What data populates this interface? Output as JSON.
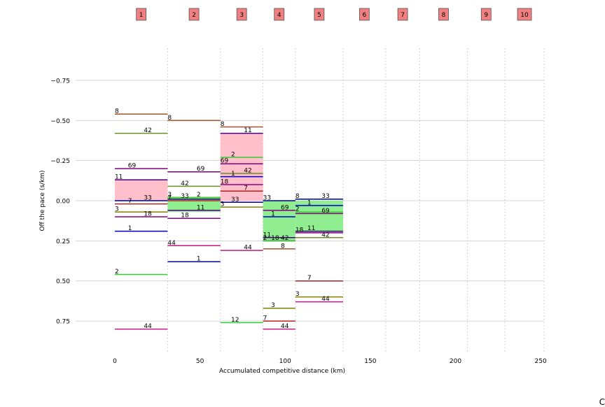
{
  "chart_data": {
    "type": "line",
    "xlabel": "Accumulated competitive distance (km)",
    "ylabel": "Off the pace (s/km)",
    "xlim": [
      -23,
      252
    ],
    "ylim": [
      0.95,
      -0.95
    ],
    "y_inverted": true,
    "grid": "horizontal solid, vertical dotted at stage ends",
    "x_ticks": [
      0,
      50,
      100,
      150,
      200,
      250
    ],
    "y_ticks": [
      -0.75,
      -0.5,
      -0.25,
      0.0,
      0.25,
      0.5,
      0.75
    ],
    "x_tick_labels": [
      "0",
      "50",
      "100",
      "150",
      "200",
      "250"
    ],
    "y_tick_labels": [
      "−0.75",
      "−0.50",
      "−0.25",
      "0.00",
      "0.25",
      "0.50",
      "0.75"
    ],
    "stage_boundaries": [
      0,
      31,
      62,
      87,
      106,
      134,
      159,
      179,
      207,
      229,
      252
    ],
    "stage_labels": [
      "1",
      "2",
      "3",
      "4",
      "5",
      "6",
      "7",
      "8",
      "9",
      "10"
    ],
    "bands": [
      {
        "stage": 1,
        "from": -0.13,
        "to": 0.0,
        "color": "#ffc0cb"
      },
      {
        "stage": 2,
        "from": -0.02,
        "to": 0.07,
        "color": "#90ee90"
      },
      {
        "stage": 3,
        "from": -0.42,
        "to": 0.0,
        "color": "#ffc0cb"
      },
      {
        "stage": 4,
        "from": 0.0,
        "to": 0.25,
        "color": "#90ee90"
      },
      {
        "stage": 5,
        "from": 0.0,
        "to": 0.2,
        "color": "#90ee90"
      }
    ],
    "series": [
      {
        "name": "8",
        "color": "#a0522d",
        "values": [
          -0.54,
          -0.5,
          -0.46,
          0.3,
          -0.01
        ]
      },
      {
        "name": "42",
        "color": "#6b8e23",
        "values": [
          -0.42,
          -0.09,
          -0.17,
          0.25,
          0.23
        ]
      },
      {
        "name": "69",
        "color": "#800080",
        "values": [
          -0.2,
          -0.18,
          -0.23,
          0.06,
          0.08
        ]
      },
      {
        "name": "11",
        "color": "#4b0082",
        "values": [
          -0.13,
          0.06,
          -0.42,
          0.23,
          0.19
        ]
      },
      {
        "name": "33",
        "color": "#000080",
        "values": [
          0.0,
          -0.01,
          0.01,
          0.0,
          -0.01
        ]
      },
      {
        "name": "7",
        "color": "#b22222",
        "values": [
          0.02,
          0.0,
          -0.06,
          0.75,
          0.5
        ]
      },
      {
        "name": "3",
        "color": "#808000",
        "values": [
          0.07,
          -0.02,
          0.04,
          0.67,
          0.6
        ]
      },
      {
        "name": "18",
        "color": "#8b008b",
        "values": [
          0.1,
          0.11,
          -0.1,
          0.25,
          0.2
        ]
      },
      {
        "name": "1",
        "color": "#0000cd",
        "values": [
          0.19,
          0.38,
          -0.15,
          0.1,
          0.03
        ]
      },
      {
        "name": "44",
        "color": "#c71585",
        "values": [
          0.8,
          0.28,
          0.31,
          0.8,
          0.63
        ]
      },
      {
        "name": "2",
        "color": "#32cd32",
        "values": [
          0.46,
          -0.02,
          -0.27,
          0.25,
          0.07
        ]
      },
      {
        "name": "12",
        "color": "#32cd32",
        "values": [
          null,
          null,
          0.76,
          null,
          null
        ]
      }
    ]
  },
  "corner_text": "C"
}
